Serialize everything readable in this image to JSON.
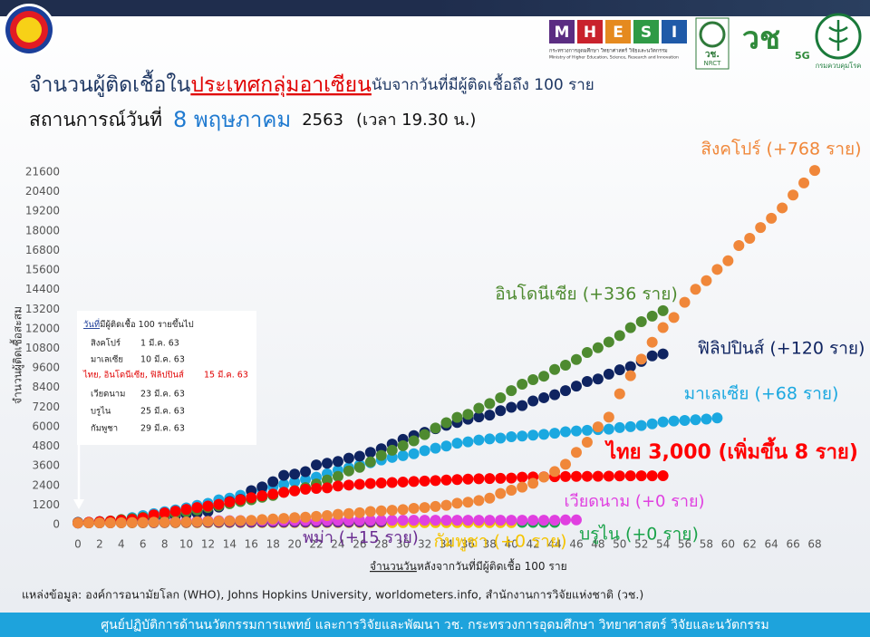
{
  "header": {
    "mhesi_letters": [
      "M",
      "H",
      "E",
      "S",
      "I"
    ],
    "mhesi_th": "กระทรวงการอุดมศึกษา วิทยาศาสตร์ วิจัยและนวัตกรรม",
    "mhesi_en": "Ministry of Higher Education, Science, Research and Innovation",
    "nrct_th": "วช.",
    "nrct_en": "NRCT",
    "vch": "วช",
    "vch_5g": "5G",
    "ddc": "กรมควบคุมโรค"
  },
  "title_parts": [
    "จำนวนผู้ติดเชื้อใน",
    "ประเทศกลุ่มอาเซียน",
    "นับจากวันที่มีผู้ติดเชื้อถึง 100 ราย"
  ],
  "subtitle_parts": [
    "สถานการณ์วันที่",
    "8 พฤษภาคม",
    "2563",
    "(เวลา 19.30 น.)"
  ],
  "inset": {
    "title_parts": [
      "วันที่",
      "มีผู้ติดเชื้อ 100 รายขึ้นไป"
    ],
    "rows": [
      [
        "สิงคโปร์",
        "1 มี.ค. 63"
      ],
      [
        "มาเลเซีย",
        "10 มี.ค. 63"
      ],
      [
        "ไทย, อินโดนีเซีย, ฟิลิปปินส์",
        "15 มี.ค. 63"
      ],
      [
        "เวียดนาม",
        "23 มี.ค. 63"
      ],
      [
        "บรูไน",
        "25 มี.ค. 63"
      ],
      [
        "กัมพูชา",
        "29 มี.ค. 63"
      ]
    ]
  },
  "source": "แหล่งข้อมูล: องค์การอนามัยโลก (WHO), Johns Hopkins University, worldometers.info, สำนักงานการวิจัยแห่งชาติ (วช.)",
  "footer": "ศูนย์ปฏิบัติการด้านนวัตกรรมการแพทย์ และการวิจัยและพัฒนา วช.  กระทรวงการอุดมศึกษา วิทยาศาสตร์ วิจัยและนวัตกรรม",
  "chart_data": {
    "type": "scatter",
    "y_label": "จำนวนผู้ติดเชื้อสะสม",
    "x_label_parts": [
      "จำนวนวัน",
      "หลังจากวันที่มีผู้ติดเชื้อ 100 ราย"
    ],
    "xlim": [
      0,
      68
    ],
    "xticks": [
      0,
      2,
      4,
      6,
      8,
      10,
      12,
      14,
      16,
      18,
      20,
      22,
      24,
      26,
      28,
      30,
      32,
      34,
      36,
      38,
      40,
      42,
      44,
      46,
      48,
      50,
      52,
      54,
      56,
      58,
      60,
      62,
      64,
      66,
      68
    ],
    "ylim": [
      -200,
      21800
    ],
    "yticks": [
      0,
      1200,
      2400,
      3600,
      4800,
      6000,
      7200,
      8400,
      9600,
      10800,
      12000,
      13200,
      14400,
      15600,
      16800,
      18000,
      19200,
      20400,
      21600
    ],
    "grid": false,
    "series": [
      {
        "name": "บรูไน (+0 ราย)",
        "color": "#1aa34a",
        "values": [
          104,
          109,
          114,
          120,
          126,
          127,
          129,
          131,
          133,
          135,
          135,
          135,
          135,
          135,
          135,
          135,
          135,
          135,
          136,
          136,
          136,
          136,
          136,
          136,
          137,
          137,
          138,
          138,
          138,
          138,
          138,
          138,
          138,
          138,
          138,
          138,
          138,
          138,
          138,
          138,
          139,
          141,
          141,
          141,
          141
        ]
      },
      {
        "name": "กัมพูชา (+0 ราย)",
        "color": "#f5c400",
        "values": [
          103,
          107,
          109,
          109,
          110,
          114,
          114,
          115,
          117,
          117,
          117,
          119,
          119,
          120,
          122,
          122,
          122,
          122,
          122,
          122,
          122,
          122,
          122,
          122,
          122,
          122,
          122,
          122,
          122,
          122,
          122,
          122,
          122,
          122,
          122,
          122,
          122,
          122,
          122,
          122,
          122
        ]
      },
      {
        "name": "พม่า (+15 ราย)",
        "color": "#6a2c91",
        "values": [
          100,
          110,
          111,
          111,
          119,
          121,
          121,
          127,
          132,
          139,
          140,
          144,
          145,
          146,
          146,
          146,
          146,
          150,
          151,
          151,
          151,
          151,
          155,
          155,
          155,
          155,
          161,
          161,
          176
        ]
      },
      {
        "name": "เวียดนาม (+0 ราย)",
        "color": "#e040e0",
        "values": [
          113,
          134,
          141,
          153,
          163,
          174,
          188,
          203,
          212,
          218,
          233,
          237,
          240,
          241,
          245,
          249,
          251,
          255,
          257,
          258,
          260,
          262,
          265,
          266,
          268,
          268,
          268,
          268,
          268,
          268,
          268,
          268,
          268,
          268,
          270,
          270,
          270,
          270,
          270,
          270,
          270,
          271,
          271,
          271,
          271,
          288,
          288
        ]
      },
      {
        "name": "มาเลเซีย (+68 ราย)",
        "color": "#1ba8e0",
        "values": [
          117,
          129,
          149,
          197,
          238,
          428,
          553,
          673,
          790,
          900,
          1030,
          1183,
          1306,
          1518,
          1624,
          1796,
          2031,
          2161,
          2320,
          2470,
          2626,
          2766,
          2908,
          3116,
          3333,
          3483,
          3662,
          3793,
          3963,
          4119,
          4228,
          4346,
          4530,
          4683,
          4817,
          4987,
          5072,
          5182,
          5251,
          5305,
          5389,
          5425,
          5482,
          5532,
          5603,
          5691,
          5742,
          5780,
          5820,
          5851,
          5945,
          6002,
          6071,
          6176,
          6298,
          6353,
          6383,
          6428,
          6467,
          6535
        ]
      },
      {
        "name": "ฟิลิปปินส์ (+120 ราย)",
        "color": "#0f2461",
        "values": [
          140,
          142,
          187,
          202,
          217,
          230,
          307,
          380,
          462,
          552,
          636,
          707,
          803,
          1075,
          1418,
          1546,
          2084,
          2311,
          2633,
          3018,
          3094,
          3246,
          3660,
          3764,
          3870,
          4076,
          4195,
          4428,
          4648,
          4932,
          5223,
          5453,
          5660,
          5878,
          6087,
          6259,
          6459,
          6599,
          6710,
          6981,
          7192,
          7294,
          7579,
          7777,
          7958,
          8212,
          8488,
          8772,
          8928,
          9223,
          9485,
          9684,
          10004,
          10343,
          10463
        ]
      },
      {
        "name": "อินโดนีเซีย (+336 ราย)",
        "color": "#4e8a30",
        "values": [
          117,
          134,
          172,
          227,
          309,
          369,
          450,
          514,
          579,
          686,
          790,
          893,
          1046,
          1155,
          1285,
          1414,
          1528,
          1677,
          1790,
          1986,
          2092,
          2273,
          2491,
          2738,
          2956,
          3293,
          3512,
          3842,
          4241,
          4557,
          4839,
          5136,
          5516,
          5923,
          6248,
          6575,
          6760,
          7135,
          7418,
          7775,
          8211,
          8607,
          8882,
          9096,
          9511,
          9771,
          10118,
          10551,
          10843,
          11192,
          11587,
          12071,
          12438,
          12776,
          13112
        ]
      },
      {
        "name": "ไทย 3,000 (เพิ่มขึ้น 8 ราย)",
        "color": "#ff0000",
        "values": [
          114,
          147,
          177,
          212,
          272,
          322,
          411,
          599,
          721,
          827,
          934,
          1045,
          1136,
          1245,
          1388,
          1524,
          1651,
          1771,
          1875,
          1978,
          2067,
          2169,
          2220,
          2258,
          2369,
          2423,
          2473,
          2518,
          2551,
          2579,
          2613,
          2643,
          2672,
          2700,
          2733,
          2765,
          2792,
          2811,
          2826,
          2839,
          2854,
          2907,
          2922,
          2931,
          2938,
          2947,
          2954,
          2960,
          2966,
          2969,
          2987,
          2988,
          2989,
          2992,
          3000
        ]
      },
      {
        "name": "สิงคโปร์ (+768 ราย)",
        "color": "#f0873a",
        "values": [
          106,
          108,
          110,
          112,
          117,
          130,
          138,
          150,
          150,
          160,
          166,
          178,
          200,
          212,
          226,
          243,
          266,
          313,
          345,
          385,
          432,
          455,
          509,
          558,
          631,
          683,
          732,
          802,
          844,
          879,
          926,
          1000,
          1049,
          1114,
          1189,
          1309,
          1375,
          1481,
          1623,
          1910,
          2108,
          2299,
          2532,
          2918,
          3252,
          3699,
          4427,
          5050,
          5992,
          6588,
          8014,
          9125,
          10141,
          11178,
          12075,
          12693,
          13624,
          14423,
          14951,
          15641,
          16169,
          17101,
          17548,
          18205,
          18778,
          19410,
          20198,
          20939,
          21707
        ]
      }
    ]
  }
}
